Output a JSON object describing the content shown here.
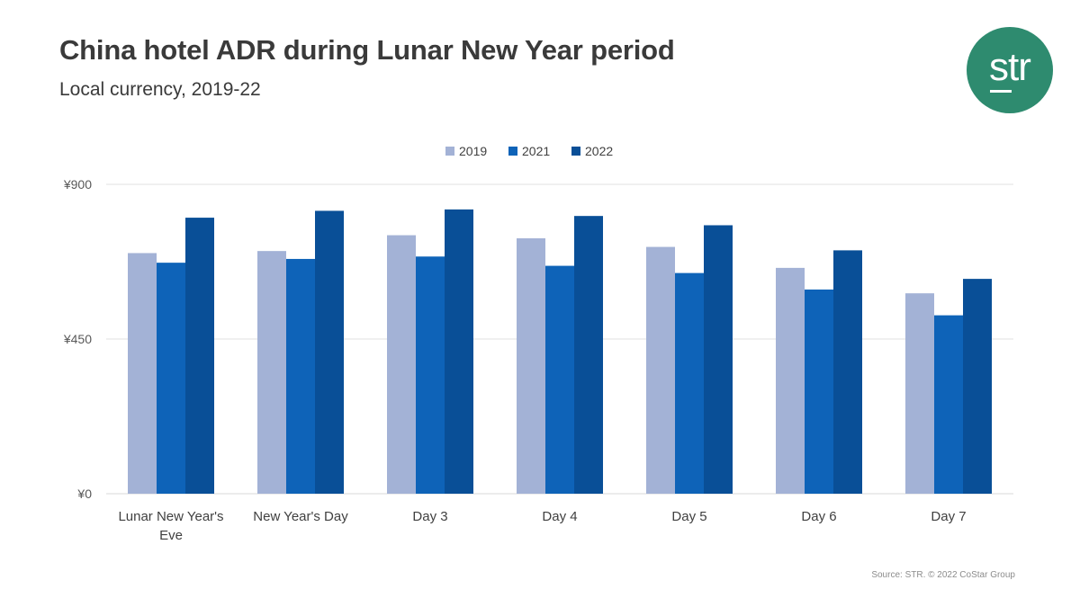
{
  "header": {
    "title": "China hotel ADR during Lunar New Year period",
    "subtitle": "Local currency, 2019-22"
  },
  "logo": {
    "text": "str"
  },
  "source": "Source: STR. © 2022 CoStar Group",
  "colors": {
    "2019": "#a3b2d6",
    "2021": "#0e63b8",
    "2022": "#094f97",
    "logo_bg": "#2e8b6f"
  },
  "chart_data": {
    "type": "bar",
    "categories": [
      [
        "Lunar New Year's",
        "Eve"
      ],
      [
        "New Year's Day"
      ],
      [
        "Day 3"
      ],
      [
        "Day 4"
      ],
      [
        "Day 5"
      ],
      [
        "Day 6"
      ],
      [
        "Day 7"
      ]
    ],
    "series": [
      {
        "name": "2019",
        "color": "#a3b2d6",
        "values": [
          700,
          706,
          752,
          743,
          718,
          657,
          583
        ]
      },
      {
        "name": "2021",
        "color": "#0e63b8",
        "values": [
          672,
          683,
          690,
          663,
          642,
          594,
          519
        ]
      },
      {
        "name": "2022",
        "color": "#094f97",
        "values": [
          803,
          823,
          827,
          808,
          781,
          708,
          625
        ]
      }
    ],
    "yticks": [
      {
        "value": 0,
        "label": "¥0"
      },
      {
        "value": 450,
        "label": "¥450"
      },
      {
        "value": 900,
        "label": "¥900"
      }
    ],
    "ylim": [
      0,
      900
    ],
    "grid": true,
    "legend": "top-center"
  }
}
